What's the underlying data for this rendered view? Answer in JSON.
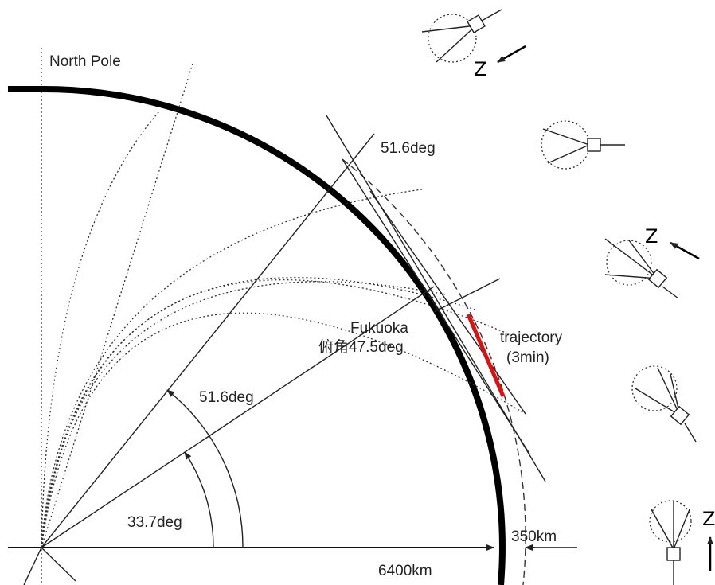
{
  "labels": {
    "north_pole": "North Pole",
    "inclination_top": "51.6deg",
    "fukuoka": "Fukuoka",
    "depression": "俯角47.5deg",
    "trajectory": "trajectory",
    "duration": "(3min)",
    "inclination_arc": "51.6deg",
    "latitude_arc": "33.7deg",
    "altitude": "350km",
    "radius": "6400km",
    "z_top": "Z",
    "z_middle": "Z",
    "z_bottom": "Z"
  }
}
